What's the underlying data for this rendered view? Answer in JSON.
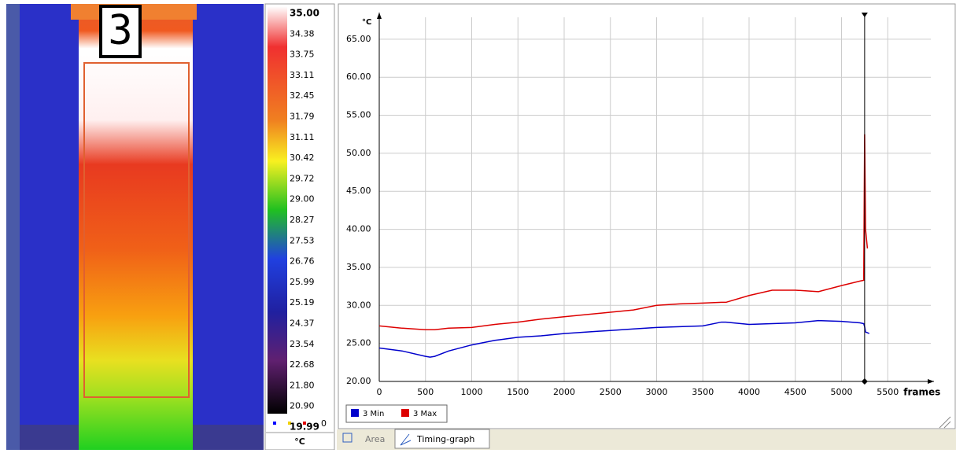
{
  "image": {
    "area_label": "3"
  },
  "color_scale": {
    "labels": [
      "35.00",
      "34.38",
      "33.75",
      "33.11",
      "32.45",
      "31.79",
      "31.11",
      "30.42",
      "29.72",
      "29.00",
      "28.27",
      "27.53",
      "26.76",
      "25.99",
      "25.19",
      "24.37",
      "23.54",
      "22.68",
      "21.80",
      "20.90",
      "19.99"
    ],
    "indicator": "0",
    "unit": "°C"
  },
  "chart_data": {
    "type": "line",
    "y_label": "°C",
    "x_label": "frames",
    "x": [
      0,
      250,
      500,
      550,
      600,
      750,
      1000,
      1250,
      1500,
      1750,
      2000,
      2250,
      2500,
      2750,
      3000,
      3250,
      3500,
      3700,
      3750,
      4000,
      4250,
      4500,
      4750,
      5000,
      5200,
      5240,
      5250,
      5260,
      5280,
      5300
    ],
    "series": [
      {
        "name": "3 Min",
        "color": "#0000cc",
        "values": [
          24.4,
          24.0,
          23.3,
          23.2,
          23.3,
          24.0,
          24.8,
          25.4,
          25.8,
          26.0,
          26.3,
          26.5,
          26.7,
          26.9,
          27.1,
          27.2,
          27.3,
          27.8,
          27.8,
          27.5,
          27.6,
          27.7,
          28.0,
          27.9,
          27.7,
          27.6,
          27.2,
          26.5,
          26.4,
          26.3
        ]
      },
      {
        "name": "3 Max",
        "color": "#dd0000",
        "values": [
          27.3,
          27.0,
          26.8,
          26.8,
          26.8,
          27.0,
          27.1,
          27.5,
          27.8,
          28.2,
          28.5,
          28.8,
          29.1,
          29.4,
          30.0,
          30.2,
          30.3,
          30.4,
          30.4,
          31.3,
          32.0,
          32.0,
          31.8,
          32.6,
          33.2,
          33.3,
          52.5,
          40.0,
          37.5,
          null
        ]
      }
    ],
    "xlim": [
      0,
      6000
    ],
    "ylim": [
      20,
      68.5
    ],
    "xticks": [
      0,
      500,
      1000,
      1500,
      2000,
      2500,
      3000,
      3500,
      4000,
      4500,
      5000,
      5500
    ],
    "yticks": [
      {
        "value": 20,
        "label": "20.00"
      },
      {
        "value": 25,
        "label": "25.00"
      },
      {
        "value": 30,
        "label": "30.00"
      },
      {
        "value": 35,
        "label": "35.00"
      },
      {
        "value": 40,
        "label": "40.00"
      },
      {
        "value": 45,
        "label": "45.00"
      },
      {
        "value": 50,
        "label": "50.00"
      },
      {
        "value": 55,
        "label": "55.00"
      },
      {
        "value": 60,
        "label": "60.00"
      },
      {
        "value": 65,
        "label": "65.00"
      }
    ],
    "grid": true,
    "cursor_x": 5250
  },
  "tabs": [
    "Area",
    "Timing-graph"
  ]
}
